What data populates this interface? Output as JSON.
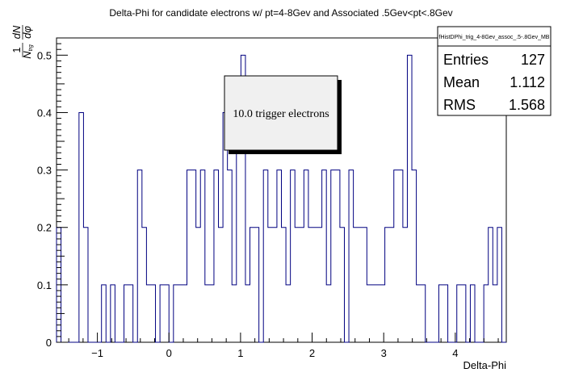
{
  "chart_data": {
    "type": "histogram",
    "title": "Delta-Phi for candidate electrons w/ pt=4-8Gev and Associated .5Gev<pt<.8Gev",
    "xlabel": "Delta-Phi",
    "ylabel_fraction": {
      "num": "1",
      "den_lead": "N",
      "den_sub": "trg",
      "frac_num": "dN",
      "frac_den": "dφ"
    },
    "xlim": [
      -1.5708,
      4.7124
    ],
    "ylim": [
      0,
      0.53
    ],
    "x_ticks": [
      -1,
      0,
      1,
      2,
      3,
      4
    ],
    "y_ticks": [
      0,
      0.1,
      0.2,
      0.3,
      0.4,
      0.5
    ],
    "x_tick_labels": [
      "−1",
      "0",
      "1",
      "2",
      "3",
      "4"
    ],
    "y_tick_labels": [
      "0",
      "0.1",
      "0.2",
      "0.3",
      "0.4",
      "0.5"
    ],
    "nbins": 100,
    "values": [
      0.2,
      0,
      0,
      0,
      0,
      0.4,
      0.2,
      0,
      0,
      0,
      0.1,
      0,
      0.1,
      0,
      0,
      0.1,
      0.1,
      0,
      0.3,
      0.2,
      0.1,
      0.1,
      0,
      0.1,
      0.1,
      0,
      0.1,
      0.1,
      0.1,
      0.3,
      0.3,
      0.2,
      0.3,
      0.1,
      0.1,
      0.3,
      0.2,
      0.4,
      0.3,
      0.1,
      0.4,
      0.5,
      0.1,
      0.2,
      0.2,
      0,
      0.3,
      0.2,
      0.2,
      0.3,
      0.2,
      0.1,
      0.3,
      0.2,
      0.2,
      0.3,
      0.2,
      0.2,
      0.2,
      0.3,
      0.1,
      0.3,
      0.3,
      0.2,
      0,
      0.3,
      0.2,
      0.2,
      0.2,
      0.1,
      0.1,
      0.1,
      0.1,
      0.2,
      0.2,
      0.3,
      0.3,
      0.2,
      0.5,
      0.3,
      0.1,
      0.1,
      0,
      0,
      0,
      0.1,
      0.1,
      0,
      0,
      0.1,
      0.1,
      0,
      0.1,
      0,
      0,
      0.1,
      0.2,
      0.1,
      0.2,
      0
    ],
    "line_color": "#000080",
    "stats": {
      "name": "fHistDPhi_trig_4-8Gev_assoc_.5-.8Gev_MB",
      "rows": [
        {
          "label": "Entries",
          "value": "127"
        },
        {
          "label": "Mean",
          "value": "1.112"
        },
        {
          "label": "RMS",
          "value": "1.568"
        }
      ]
    },
    "annotation": "10.0 trigger electrons"
  }
}
